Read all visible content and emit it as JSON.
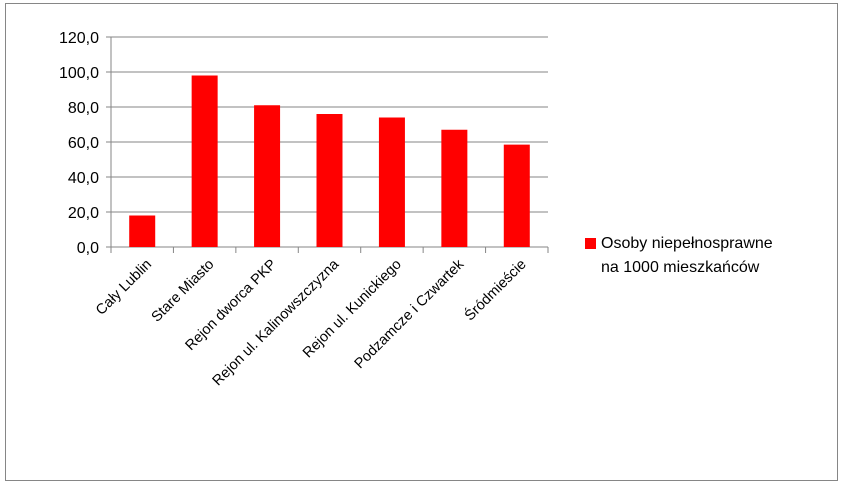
{
  "chart_data": {
    "type": "bar",
    "categories": [
      "Cały Lublin",
      "Stare Miasto",
      "Rejon dworca PKP",
      "Rejon ul. Kalinowszczyzna",
      "Rejon ul. Kunickiego",
      "Podzamcze i Czwartek",
      "Śródmieście"
    ],
    "series": [
      {
        "name": "Osoby niepełnosprawne na 1000 mieszkańców",
        "values": [
          18.0,
          98.0,
          81.0,
          76.0,
          74.0,
          67.0,
          58.5
        ]
      }
    ],
    "ylim": [
      0,
      120
    ],
    "yticks": [
      "0,0",
      "20,0",
      "40,0",
      "60,0",
      "80,0",
      "100,0",
      "120,0"
    ],
    "grid": true,
    "legend_placement": "right",
    "title": "",
    "xlabel": "",
    "ylabel": ""
  },
  "colors": {
    "bar": "#ff0000",
    "grid": "#868686",
    "axis": "#868686"
  },
  "legend": {
    "line1": "Osoby niepełnosprawne",
    "line2": "na 1000 mieszkańców"
  }
}
